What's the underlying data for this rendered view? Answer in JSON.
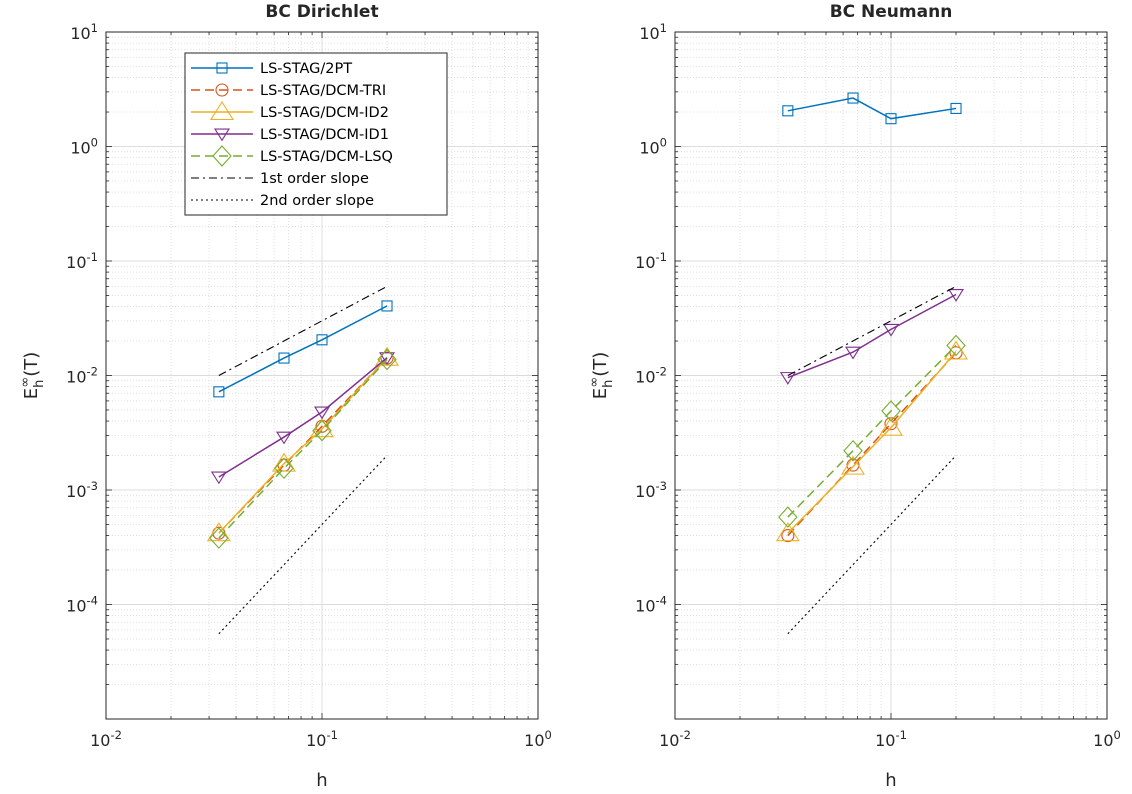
{
  "chart_data": [
    {
      "type": "line",
      "title": "BC Dirichlet",
      "xlabel": "h",
      "ylabel": "E_h^∞(T)",
      "xscale": "log",
      "yscale": "log",
      "xlim": [
        0.01,
        1
      ],
      "ylim": [
        1e-05,
        10
      ],
      "xticks": [
        {
          "value": 0.01,
          "base": "10",
          "exp": "-2"
        },
        {
          "value": 0.1,
          "base": "10",
          "exp": "-1"
        },
        {
          "value": 1,
          "base": "10",
          "exp": "0"
        }
      ],
      "yticks": [
        {
          "value": 0.0001,
          "base": "10",
          "exp": "-4"
        },
        {
          "value": 0.001,
          "base": "10",
          "exp": "-3"
        },
        {
          "value": 0.01,
          "base": "10",
          "exp": "-2"
        },
        {
          "value": 0.1,
          "base": "10",
          "exp": "-1"
        },
        {
          "value": 1,
          "base": "10",
          "exp": "0"
        },
        {
          "value": 10,
          "base": "10",
          "exp": "1"
        }
      ],
      "grid": true,
      "minor_grid": true,
      "legend_position": "top-left",
      "series": [
        {
          "name": "LS-STAG/2PT",
          "x": [
            0.0333,
            0.0667,
            0.1,
            0.2
          ],
          "y": [
            0.0072,
            0.0142,
            0.0205,
            0.0405
          ],
          "color": "#0072BD",
          "dash": "solid",
          "marker": "square"
        },
        {
          "name": "LS-STAG/DCM-TRI",
          "x": [
            0.0333,
            0.0667,
            0.1,
            0.2
          ],
          "y": [
            0.00042,
            0.00165,
            0.0036,
            0.0142
          ],
          "color": "#D95319",
          "dash": "dashed",
          "marker": "circle"
        },
        {
          "name": "LS-STAG/DCM-ID2",
          "x": [
            0.0333,
            0.0667,
            0.1,
            0.2
          ],
          "y": [
            0.00042,
            0.0017,
            0.0034,
            0.0143
          ],
          "color": "#EDB120",
          "dash": "solid",
          "marker": "triangle-up"
        },
        {
          "name": "LS-STAG/DCM-ID1",
          "x": [
            0.0333,
            0.0667,
            0.1,
            0.2
          ],
          "y": [
            0.0013,
            0.0029,
            0.0048,
            0.0143
          ],
          "color": "#7E2F8E",
          "dash": "solid",
          "marker": "triangle-down"
        },
        {
          "name": "LS-STAG/DCM-LSQ",
          "x": [
            0.0333,
            0.0667,
            0.1,
            0.2
          ],
          "y": [
            0.00038,
            0.00155,
            0.0033,
            0.0138
          ],
          "color": "#77AC30",
          "dash": "dashed",
          "marker": "diamond"
        },
        {
          "name": "1st order slope",
          "x": [
            0.0333,
            0.2
          ],
          "y": [
            0.01,
            0.06
          ],
          "color": "#000000",
          "dash": "dashdot",
          "marker": "none"
        },
        {
          "name": "2nd order slope",
          "x": [
            0.0333,
            0.2
          ],
          "y": [
            5.55e-05,
            0.002
          ],
          "color": "#000000",
          "dash": "dotted",
          "marker": "none"
        }
      ]
    },
    {
      "type": "line",
      "title": "BC Neumann",
      "xlabel": "h",
      "ylabel": "E_h^∞(T)",
      "xscale": "log",
      "yscale": "log",
      "xlim": [
        0.01,
        1
      ],
      "ylim": [
        1e-05,
        10
      ],
      "xticks": [
        {
          "value": 0.01,
          "base": "10",
          "exp": "-2"
        },
        {
          "value": 0.1,
          "base": "10",
          "exp": "-1"
        },
        {
          "value": 1,
          "base": "10",
          "exp": "0"
        }
      ],
      "yticks": [
        {
          "value": 0.0001,
          "base": "10",
          "exp": "-4"
        },
        {
          "value": 0.001,
          "base": "10",
          "exp": "-3"
        },
        {
          "value": 0.01,
          "base": "10",
          "exp": "-2"
        },
        {
          "value": 0.1,
          "base": "10",
          "exp": "-1"
        },
        {
          "value": 1,
          "base": "10",
          "exp": "0"
        },
        {
          "value": 10,
          "base": "10",
          "exp": "1"
        }
      ],
      "grid": true,
      "minor_grid": true,
      "series": [
        {
          "x": [
            0.0333,
            0.0667,
            0.1,
            0.2
          ],
          "y": [
            2.05,
            2.65,
            1.75,
            2.15
          ],
          "color": "#0072BD",
          "dash": "solid",
          "marker": "square"
        },
        {
          "x": [
            0.0333,
            0.0667,
            0.1,
            0.2
          ],
          "y": [
            0.0004,
            0.00165,
            0.0038,
            0.0158
          ],
          "color": "#D95319",
          "dash": "dashed",
          "marker": "circle"
        },
        {
          "x": [
            0.0333,
            0.0667,
            0.1,
            0.2
          ],
          "y": [
            0.00042,
            0.0016,
            0.0035,
            0.0162
          ],
          "color": "#EDB120",
          "dash": "solid",
          "marker": "triangle-up"
        },
        {
          "x": [
            0.0333,
            0.0667,
            0.1,
            0.2
          ],
          "y": [
            0.0096,
            0.016,
            0.0253,
            0.051
          ],
          "color": "#7E2F8E",
          "dash": "solid",
          "marker": "triangle-down"
        },
        {
          "x": [
            0.0333,
            0.0667,
            0.1,
            0.2
          ],
          "y": [
            0.00058,
            0.0022,
            0.0049,
            0.0183
          ],
          "color": "#77AC30",
          "dash": "dashed",
          "marker": "diamond"
        },
        {
          "x": [
            0.0333,
            0.2
          ],
          "y": [
            0.01,
            0.06
          ],
          "color": "#000000",
          "dash": "dashdot",
          "marker": "none"
        },
        {
          "x": [
            0.0333,
            0.2
          ],
          "y": [
            5.55e-05,
            0.002
          ],
          "color": "#000000",
          "dash": "dotted",
          "marker": "none"
        }
      ]
    }
  ]
}
